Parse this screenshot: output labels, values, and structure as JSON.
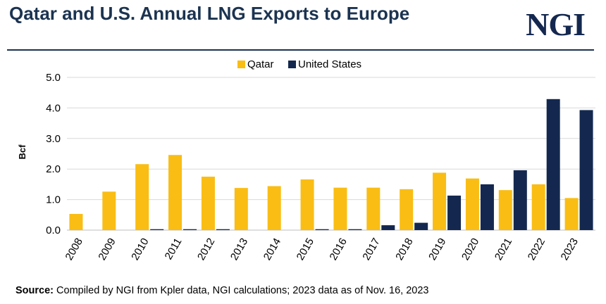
{
  "header": {
    "title": "Qatar and U.S. Annual LNG Exports to Europe",
    "logo_text": "NGI"
  },
  "footer": {
    "source_label": "Source:",
    "source_text": "Compiled by NGI from Kpler data, NGI calculations; 2023 data as of Nov. 16, 2023"
  },
  "colors": {
    "title": "#1b3350",
    "qatar": "#f9bd14",
    "united_states": "#14284f",
    "grid": "#d9d9d9"
  },
  "chart_data": {
    "type": "bar",
    "title": "",
    "xlabel": "",
    "ylabel": "Bcf",
    "ylim": [
      0,
      5
    ],
    "yticks": [
      "0.0",
      "1.0",
      "2.0",
      "3.0",
      "4.0",
      "5.0"
    ],
    "grid": true,
    "legend_position": "top-center",
    "categories": [
      "2008",
      "2009",
      "2010",
      "2011",
      "2012",
      "2013",
      "2014",
      "2015",
      "2016",
      "2017",
      "2018",
      "2019",
      "2020",
      "2021",
      "2022",
      "2023"
    ],
    "series": [
      {
        "name": "Qatar",
        "color": "#f9bd14",
        "values": [
          0.53,
          1.26,
          2.16,
          2.46,
          1.75,
          1.38,
          1.44,
          1.66,
          1.39,
          1.39,
          1.34,
          1.88,
          1.69,
          1.31,
          1.5,
          1.05
        ]
      },
      {
        "name": "United States",
        "color": "#14284f",
        "values": [
          0,
          0,
          0.03,
          0.03,
          0.03,
          0,
          0,
          0.03,
          0.03,
          0.16,
          0.24,
          1.13,
          1.5,
          1.96,
          4.29,
          3.93
        ]
      }
    ]
  }
}
